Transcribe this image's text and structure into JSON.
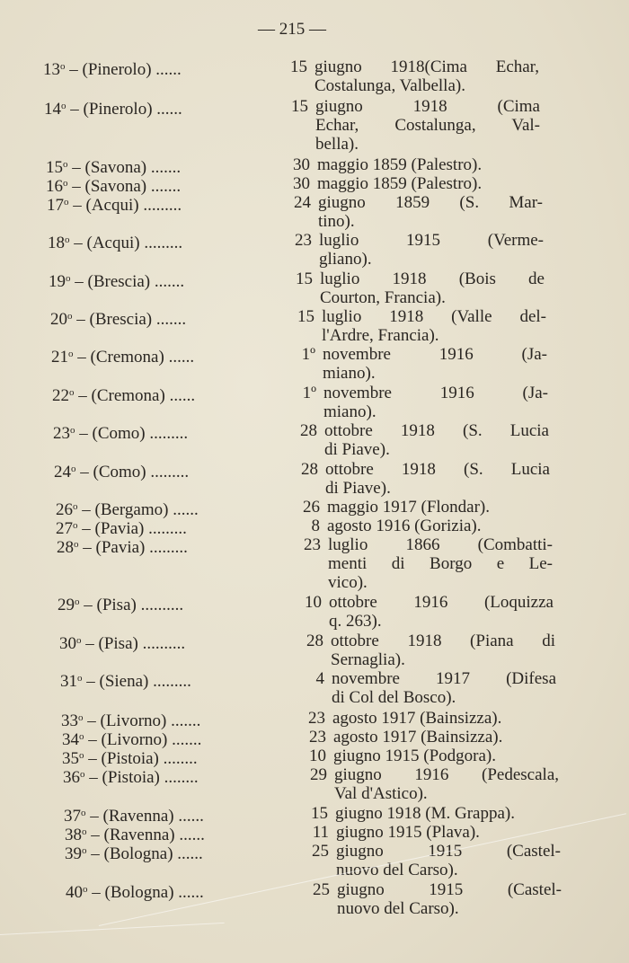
{
  "page_number": "— 215 —",
  "entries": [
    {
      "num": "13",
      "city": "(Pinerolo)",
      "dots": "......",
      "day": "15",
      "lines": [
        "giugno 1918(Cima Echar,",
        "Costalunga, Valbella)."
      ]
    },
    {
      "num": "14",
      "city": "(Pinerolo)",
      "dots": "......",
      "day": "15",
      "lines": [
        "giugno 1918 (Cima",
        "Echar, Costalunga, Val-",
        "bella)."
      ]
    },
    {
      "num": "15",
      "city": "(Savona)",
      "dots": ".......",
      "day": "30",
      "lines": [
        "maggio 1859 (Palestro)."
      ]
    },
    {
      "num": "16",
      "city": "(Savona)",
      "dots": ".......",
      "day": "30",
      "lines": [
        "maggio 1859 (Palestro)."
      ]
    },
    {
      "num": "17",
      "city": "(Acqui)",
      "dots": ".........",
      "day": "24",
      "lines": [
        "giugno 1859 (S. Mar-",
        "tino)."
      ]
    },
    {
      "num": "18",
      "city": "(Acqui)",
      "dots": ".........",
      "day": "23",
      "lines": [
        "luglio 1915 (Verme-",
        "gliano)."
      ]
    },
    {
      "num": "19",
      "city": "(Brescia)",
      "dots": ".......",
      "day": "15",
      "lines": [
        "luglio 1918 (Bois de",
        "Courton, Francia)."
      ]
    },
    {
      "num": "20",
      "city": "(Brescia)",
      "dots": ".......",
      "day": "15",
      "lines": [
        "luglio 1918 (Valle del-",
        "l'Ardre, Francia)."
      ]
    },
    {
      "num": "21",
      "city": "(Cremona)",
      "dots": "......",
      "day": "1º",
      "lines": [
        "novembre 1916 (Ja-",
        "miano)."
      ]
    },
    {
      "num": "22",
      "city": "(Cremona)",
      "dots": "......",
      "day": "1º",
      "lines": [
        "novembre 1916 (Ja-",
        "miano)."
      ]
    },
    {
      "num": "23",
      "city": "(Como)",
      "dots": ".........",
      "day": "28",
      "lines": [
        "ottobre 1918 (S. Lucia",
        "di Piave)."
      ]
    },
    {
      "num": "24",
      "city": "(Como)",
      "dots": ".........",
      "day": "28",
      "lines": [
        "ottobre 1918 (S. Lucia",
        "di Piave)."
      ]
    },
    {
      "num": "26",
      "city": "(Bergamo)",
      "dots": "......",
      "day": "26",
      "lines": [
        "maggio 1917 (Flondar)."
      ]
    },
    {
      "num": "27",
      "city": "(Pavia)",
      "dots": ".........",
      "day": "8",
      "lines": [
        "agosto 1916 (Gorizia)."
      ]
    },
    {
      "num": "28",
      "city": "(Pavia)",
      "dots": ".........",
      "day": "23",
      "lines": [
        "luglio 1866 (Combatti-",
        "menti di Borgo e Le-",
        "vico)."
      ]
    },
    {
      "num": "29",
      "city": "(Pisa)",
      "dots": "..........",
      "day": "10",
      "lines": [
        "ottobre 1916 (Loquizza",
        "q. 263)."
      ]
    },
    {
      "num": "30",
      "city": "(Pisa)",
      "dots": "..........",
      "day": "28",
      "lines": [
        "ottobre 1918 (Piana di",
        "Sernaglia)."
      ]
    },
    {
      "num": "31",
      "city": "(Siena)",
      "dots": ".........",
      "day": "4",
      "lines": [
        "novembre 1917 (Difesa",
        "di Col del Bosco)."
      ]
    },
    {
      "num": "33",
      "city": "(Livorno)",
      "dots": ".......",
      "day": "23",
      "lines": [
        "agosto 1917 (Bainsizza)."
      ]
    },
    {
      "num": "34",
      "city": "(Livorno)",
      "dots": ".......",
      "day": "23",
      "lines": [
        "agosto 1917 (Bainsizza)."
      ]
    },
    {
      "num": "35",
      "city": "(Pistoia)",
      "dots": "........",
      "day": "10",
      "lines": [
        "giugno 1915 (Podgora)."
      ]
    },
    {
      "num": "36",
      "city": "(Pistoia)",
      "dots": "........",
      "day": "29",
      "lines": [
        "giugno 1916 (Pedescala,",
        "Val d'Astico)."
      ]
    },
    {
      "num": "37",
      "city": "(Ravenna)",
      "dots": "......",
      "day": "15",
      "lines": [
        "giugno 1918 (M. Grappa)."
      ]
    },
    {
      "num": "38",
      "city": "(Ravenna)",
      "dots": "......",
      "day": "11",
      "lines": [
        "giugno 1915 (Plava)."
      ]
    },
    {
      "num": "39",
      "city": "(Bologna)",
      "dots": "......",
      "day": "25",
      "lines": [
        "giugno 1915 (Castel-",
        "nuovo del Carso)."
      ]
    },
    {
      "num": "40",
      "city": "(Bologna)",
      "dots": "......",
      "day": "25",
      "lines": [
        "giugno 1915 (Castel-",
        "nuovo del Carso)."
      ]
    }
  ]
}
